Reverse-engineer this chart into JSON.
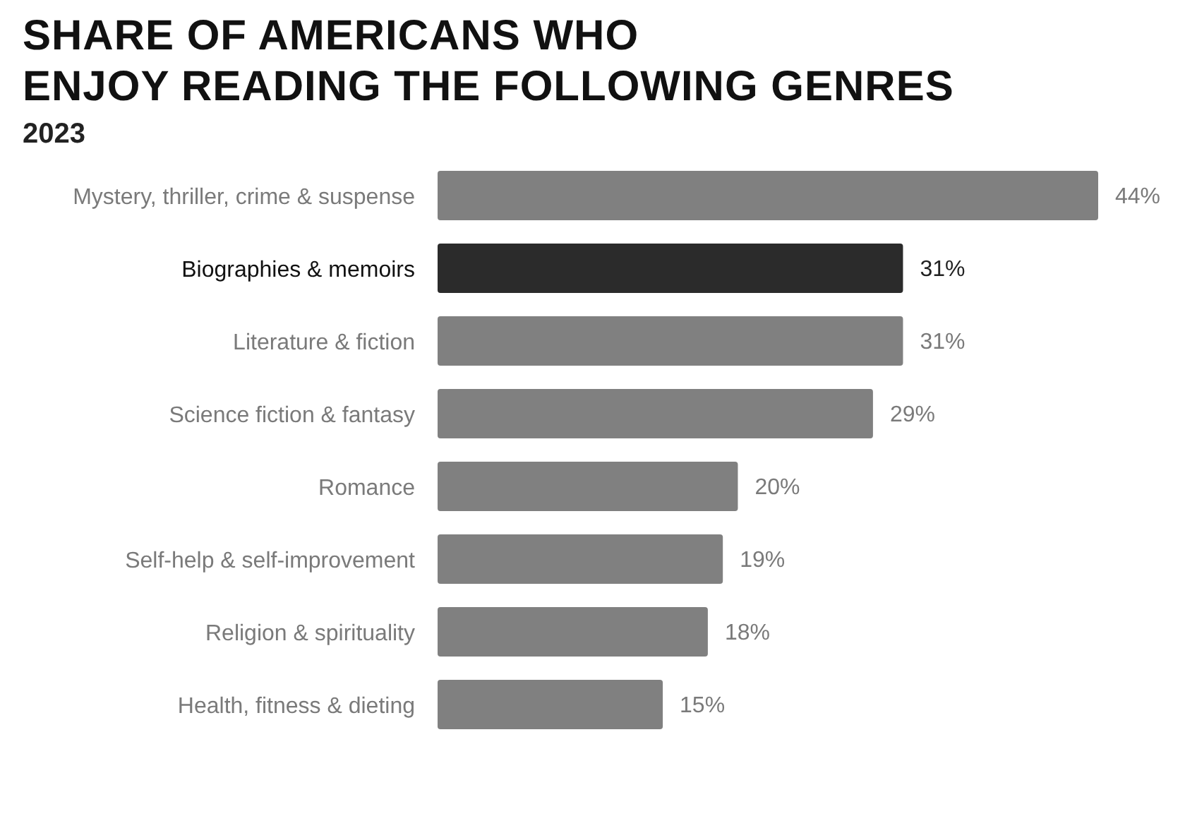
{
  "chart_data": {
    "type": "bar",
    "orientation": "horizontal",
    "title": "SHARE OF AMERICANS WHO\nENJOY READING THE FOLLOWING GENRES",
    "subtitle": "2023",
    "categories": [
      "Mystery, thriller, crime & suspense",
      "Biographies & memoirs",
      "Literature & fiction",
      "Science fiction & fantasy",
      "Romance",
      "Self-help & self-improvement",
      "Religion & spirituality",
      "Health, fitness & dieting"
    ],
    "values": [
      44,
      31,
      31,
      29,
      20,
      19,
      18,
      15
    ],
    "colors": [
      "#808080",
      "#2b2b2b",
      "#808080",
      "#808080",
      "#808080",
      "#808080",
      "#808080",
      "#808080"
    ],
    "value_labels": [
      "44%",
      "31%",
      "31%",
      "29%",
      "20%",
      "19%",
      "18%",
      "15%"
    ]
  }
}
